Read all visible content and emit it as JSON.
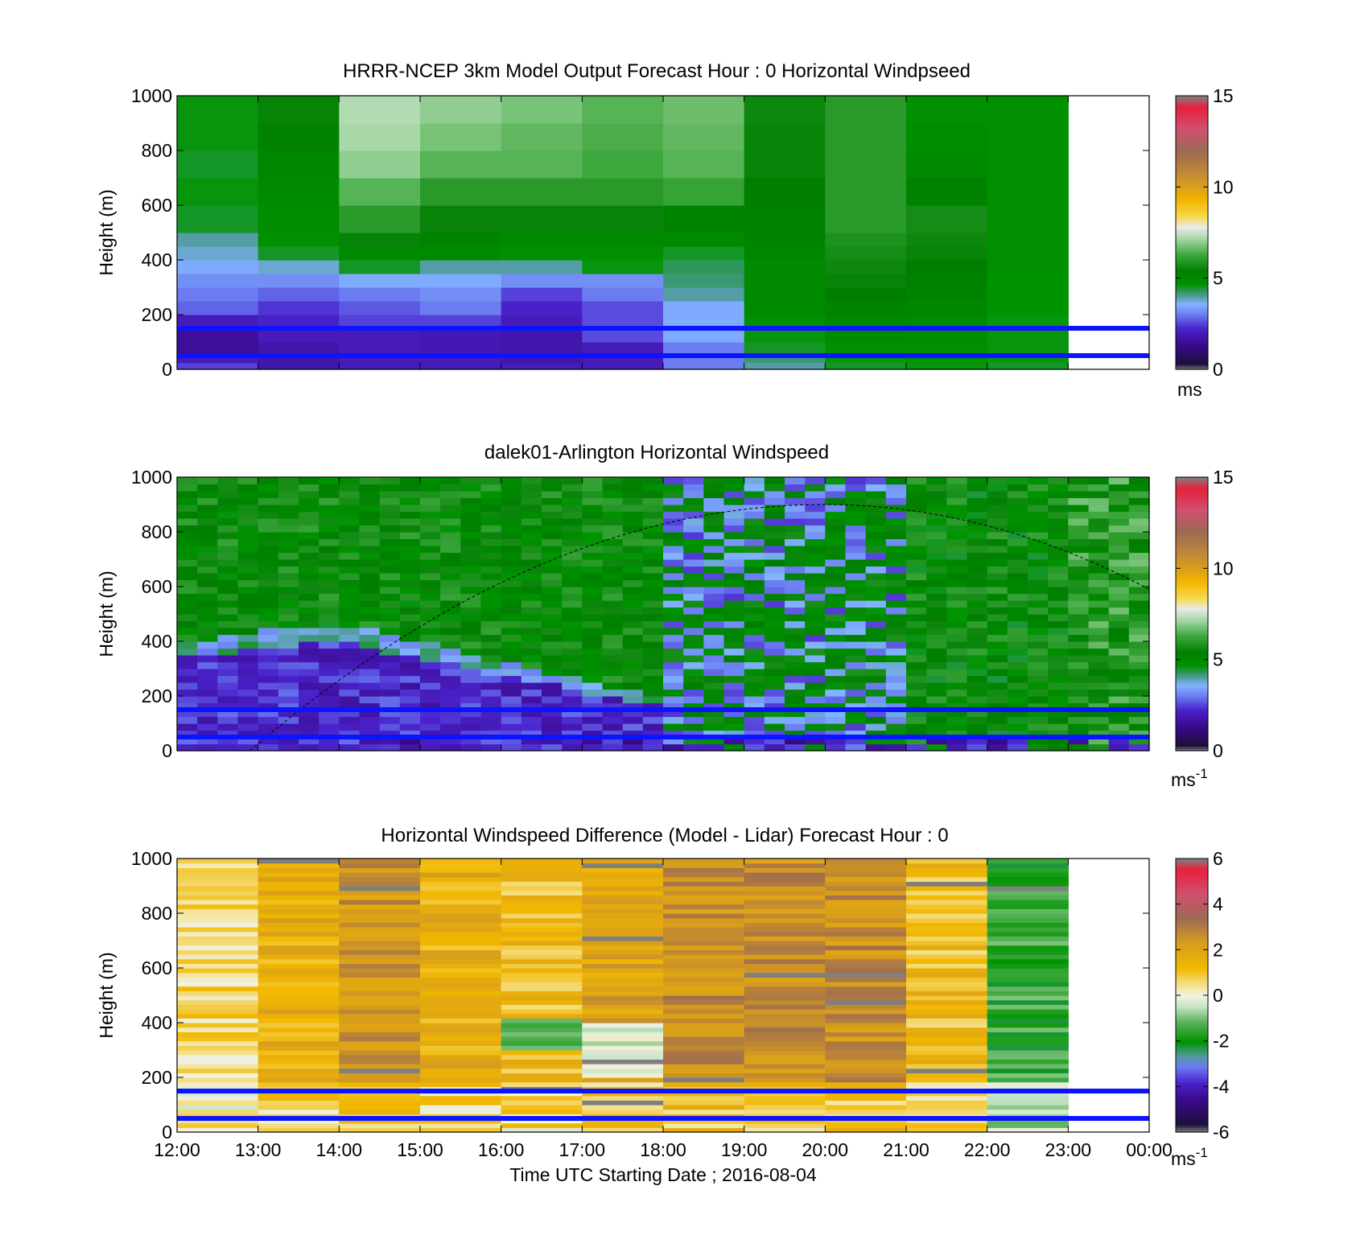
{
  "chart_data": [
    {
      "type": "heatmap",
      "title": "HRRR-NCEP 3km Model Output   Forecast Hour : 0 Horizontal Windpseed",
      "ylabel": "Height (m)",
      "xlim": [
        12,
        24
      ],
      "ylim": [
        0,
        1000
      ],
      "yticks": [
        0,
        200,
        400,
        600,
        800,
        1000
      ],
      "colorbar": {
        "ticks": [
          0,
          5,
          10,
          15
        ],
        "range": [
          0,
          15
        ],
        "unit": "ms"
      },
      "reference_lines_m": [
        150,
        50
      ],
      "x_hours": [
        12,
        13,
        14,
        15,
        16,
        17,
        18,
        19,
        20,
        21,
        22
      ],
      "height_bins_m": [
        0,
        25,
        50,
        100,
        150,
        200,
        250,
        300,
        350,
        400,
        450,
        500,
        600,
        700,
        800,
        900,
        1000
      ],
      "values": [
        [
          2.5,
          2.0,
          1.5,
          1.5,
          2.0,
          2.8,
          3.0,
          3.2,
          3.5,
          3.8,
          4.0,
          4.5,
          4.6,
          4.5,
          4.6,
          4.6
        ],
        [
          1.8,
          1.8,
          1.8,
          2.0,
          2.2,
          2.4,
          2.8,
          3.2,
          3.8,
          4.5,
          4.8,
          4.9,
          5.0,
          5.1,
          5.3,
          5.5
        ],
        [
          2.0,
          2.0,
          2.0,
          2.0,
          2.5,
          2.7,
          3.0,
          3.5,
          4.5,
          5.0,
          5.5,
          6.0,
          6.5,
          7.0,
          7.2,
          7.3
        ],
        [
          2.0,
          2.0,
          1.9,
          1.9,
          2.5,
          3.0,
          3.2,
          3.5,
          4.0,
          5.0,
          5.2,
          5.5,
          6.0,
          6.5,
          6.8,
          7.0
        ],
        [
          2.0,
          1.8,
          1.8,
          1.8,
          2.0,
          2.2,
          2.5,
          3.2,
          4.0,
          4.8,
          5.0,
          5.5,
          6.0,
          6.5,
          6.6,
          6.8
        ],
        [
          2.0,
          2.0,
          2.0,
          2.6,
          2.6,
          2.6,
          3.0,
          3.2,
          4.6,
          4.8,
          5.0,
          5.5,
          6.0,
          6.3,
          6.4,
          6.5
        ],
        [
          3.0,
          3.0,
          3.0,
          3.5,
          3.5,
          3.5,
          4.0,
          4.2,
          4.3,
          4.5,
          5.0,
          5.2,
          6.2,
          6.5,
          6.6,
          6.7
        ],
        [
          4.0,
          4.2,
          4.5,
          4.6,
          4.8,
          5.0,
          5.0,
          5.0,
          5.0,
          5.1,
          5.2,
          5.3,
          5.4,
          5.5,
          5.5,
          5.6
        ],
        [
          4.5,
          4.6,
          4.8,
          5.0,
          5.1,
          5.2,
          5.4,
          5.5,
          5.6,
          5.7,
          5.8,
          6.0,
          6.0,
          6.0,
          6.0,
          6.0
        ],
        [
          4.6,
          4.7,
          4.8,
          4.9,
          5.0,
          5.1,
          5.2,
          5.3,
          5.4,
          5.5,
          5.6,
          5.7,
          5.3,
          5.0,
          4.9,
          4.8
        ],
        [
          4.5,
          4.6,
          4.6,
          4.6,
          4.6,
          4.7,
          4.7,
          4.7,
          4.8,
          4.8,
          4.8,
          4.8,
          4.8,
          4.8,
          4.8,
          4.8
        ]
      ]
    },
    {
      "type": "heatmap",
      "title": "dalek01-Arlington  Horizontal Windspeed",
      "ylabel": "Height (m)",
      "xlim": [
        12,
        24
      ],
      "ylim": [
        0,
        1000
      ],
      "yticks": [
        0,
        200,
        400,
        600,
        800,
        1000
      ],
      "colorbar": {
        "ticks": [
          0,
          5,
          10,
          15
        ],
        "range": [
          0,
          15
        ],
        "unit": "ms",
        "unit_exponent": "-1"
      },
      "reference_lines_m": [
        150,
        50
      ],
      "overlay_curve": {
        "description": "dashed arc",
        "x_hours": [
          12.9,
          20,
          24
        ],
        "height_m": [
          0,
          900,
          590
        ]
      },
      "profile_spacing_hours": 0.25,
      "profile_range_hours": [
        12,
        23.9
      ],
      "vertical_bins": 40
    },
    {
      "type": "heatmap",
      "title": "Horizontal Windspeed Difference (Model - Lidar) Forecast Hour : 0",
      "xlabel": "Time UTC  Starting Date ; 2016-08-04",
      "ylabel": "Height (m)",
      "xlim": [
        12,
        24
      ],
      "ylim": [
        0,
        1000
      ],
      "xticks": [
        "12:00",
        "13:00",
        "14:00",
        "15:00",
        "16:00",
        "17:00",
        "18:00",
        "19:00",
        "20:00",
        "21:00",
        "22:00",
        "23:00",
        "00:00"
      ],
      "yticks": [
        0,
        200,
        400,
        600,
        800,
        1000
      ],
      "colorbar": {
        "ticks": [
          -6,
          -4,
          -2,
          0,
          2,
          4,
          6
        ],
        "range": [
          -6,
          6
        ],
        "unit": "ms",
        "unit_exponent": "-1"
      },
      "reference_lines_m": [
        150,
        50
      ],
      "x_hours": [
        12,
        13,
        14,
        15,
        16,
        17,
        18,
        19,
        20,
        21,
        22
      ],
      "typical_difference": [
        0.6,
        1.6,
        2.4,
        1.6,
        1.2,
        2.0,
        2.6,
        2.6,
        2.6,
        1.2,
        -1.6
      ]
    }
  ]
}
